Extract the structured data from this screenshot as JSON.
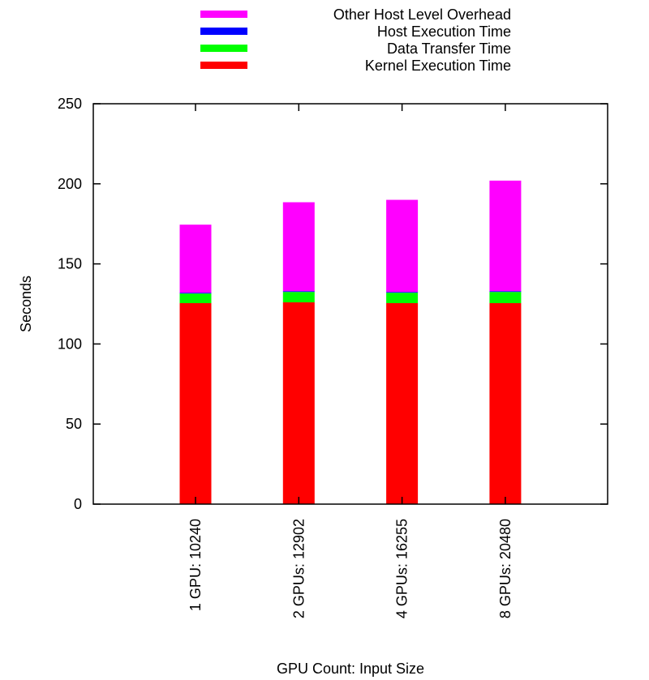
{
  "chart_data": {
    "type": "bar",
    "stacked": true,
    "title": "",
    "xlabel": "GPU Count: Input Size",
    "ylabel": "Seconds",
    "ylim": [
      0,
      250
    ],
    "yticks": [
      0,
      50,
      100,
      150,
      200,
      250
    ],
    "grid": false,
    "legend_position": "top",
    "categories": [
      "1 GPU: 10240",
      "2 GPUs: 12902",
      "4 GPUs: 16255",
      "8 GPUs: 20480"
    ],
    "series": [
      {
        "name": "Kernel Execution Time",
        "color": "#ff0000",
        "values": [
          125.5,
          126,
          125.5,
          125.5
        ]
      },
      {
        "name": "Data Transfer Time",
        "color": "#00ff00",
        "values": [
          6,
          6.5,
          6.5,
          7
        ]
      },
      {
        "name": "Host Execution Time",
        "color": "#0000ff",
        "values": [
          0.5,
          0.5,
          0.5,
          0.5
        ]
      },
      {
        "name": "Other Host Level Overhead",
        "color": "#ff00ff",
        "values": [
          42.5,
          55.5,
          57.5,
          69
        ]
      }
    ],
    "legend_order": [
      "Other Host Level Overhead",
      "Host Execution Time",
      "Data Transfer Time",
      "Kernel Execution Time"
    ]
  }
}
